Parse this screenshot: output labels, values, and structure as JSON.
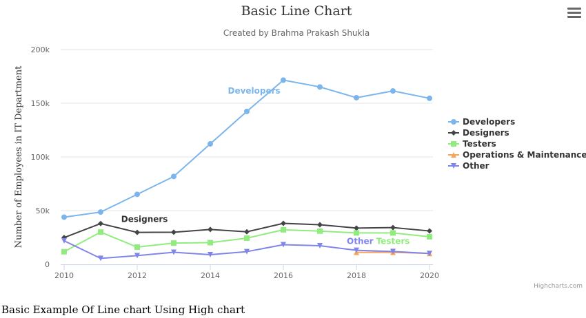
{
  "caption": "Basic Example Of Line chart Using High chart",
  "menu_icon": "hamburger-menu-icon",
  "credits": "Highcharts.com",
  "chart_data": {
    "type": "line",
    "title": "Basic Line Chart",
    "subtitle": "Created by Brahma Prakash Shukla",
    "xlabel": "",
    "ylabel": "Number of Employees in IT Department",
    "x": [
      2010,
      2011,
      2012,
      2013,
      2014,
      2015,
      2016,
      2017,
      2018,
      2019,
      2020
    ],
    "xticks": [
      "2010",
      "2012",
      "2014",
      "2016",
      "2018",
      "2020"
    ],
    "xlim": [
      2010,
      2020
    ],
    "ylim": [
      0,
      200000
    ],
    "yticks": [
      0,
      50000,
      100000,
      150000,
      200000
    ],
    "ytick_labels": [
      "0",
      "50k",
      "100k",
      "150k",
      "200k"
    ],
    "grid": true,
    "legend_position": "right",
    "series": [
      {
        "name": "Developers",
        "color": "#7cb5ec",
        "marker": "circle",
        "values": [
          43934,
          48656,
          65165,
          81827,
          112143,
          142383,
          171533,
          165174,
          155157,
          161454,
          154610
        ],
        "label": "Developers"
      },
      {
        "name": "Designers",
        "color": "#434348",
        "marker": "diamond",
        "values": [
          24916,
          37941,
          29742,
          29851,
          32490,
          30282,
          38121,
          36885,
          33726,
          34243,
          31050
        ],
        "label": "Designers"
      },
      {
        "name": "Testers",
        "color": "#90ed7d",
        "marker": "square",
        "values": [
          11744,
          30000,
          16005,
          19771,
          20185,
          24377,
          32147,
          30912,
          29243,
          29213,
          25663
        ],
        "label": "Testers"
      },
      {
        "name": "Operations & Maintenance",
        "color": "#f7a35c",
        "marker": "triangle",
        "values": [
          null,
          null,
          null,
          null,
          null,
          null,
          null,
          null,
          11164,
          11218,
          10077
        ],
        "label": ""
      },
      {
        "name": "Other",
        "color": "#8085e9",
        "marker": "triangle-down",
        "values": [
          21908,
          5548,
          8105,
          11248,
          8989,
          11816,
          18274,
          17300,
          13053,
          11906,
          10073
        ],
        "label": "Other"
      }
    ]
  }
}
